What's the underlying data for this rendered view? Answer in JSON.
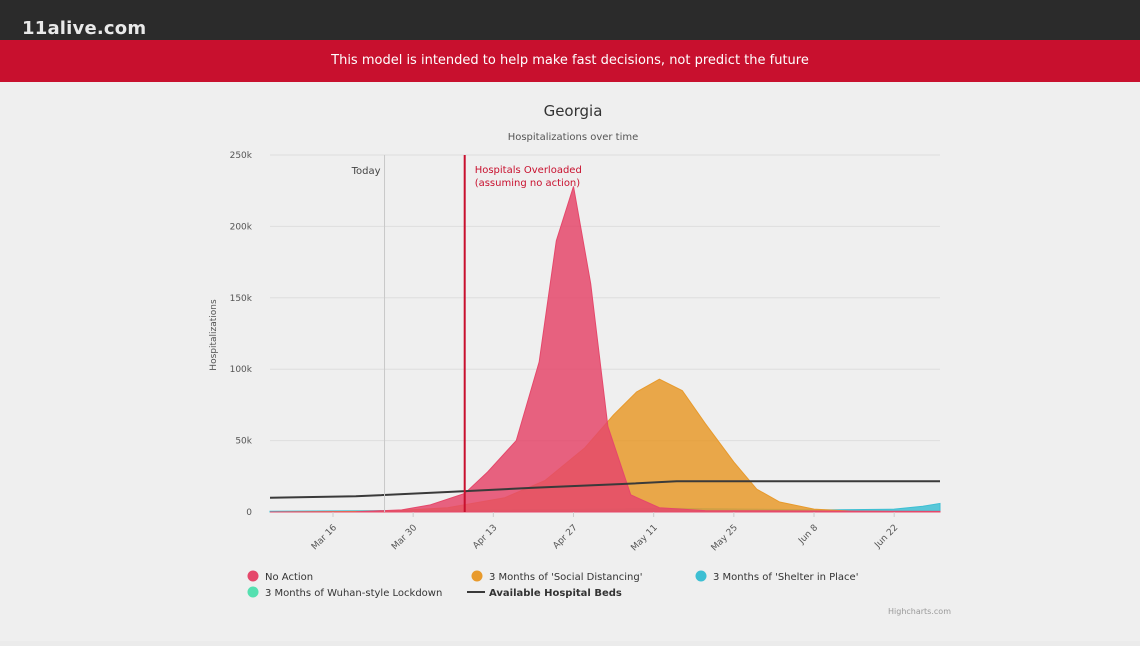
{
  "header": {
    "site_name": "11alive.com"
  },
  "banner": {
    "text": "This model is intended to help make fast decisions, not predict the future"
  },
  "colors": {
    "no_action": "#e5486b",
    "social_distancing": "#e89a2c",
    "shelter": "#3dbfd3",
    "wuhan": "#55e0b0",
    "beds": "#3a3a3a",
    "banner": "#c8102e"
  },
  "credit": "Highcharts.com",
  "chart_data": {
    "type": "area",
    "title": "Georgia",
    "subtitle": "Hospitalizations over time",
    "ylabel": "Hospitalizations",
    "ylim": [
      0,
      250000
    ],
    "y_ticks": [
      {
        "value": 0,
        "label": "0"
      },
      {
        "value": 50000,
        "label": "50k"
      },
      {
        "value": 100000,
        "label": "100k"
      },
      {
        "value": 150000,
        "label": "150k"
      },
      {
        "value": 200000,
        "label": "200k"
      },
      {
        "value": 250000,
        "label": "250k"
      }
    ],
    "xlim": [
      "Mar 5",
      "Jun 30"
    ],
    "x_ticks": [
      "Mar 16",
      "Mar 30",
      "Apr 13",
      "Apr 27",
      "May 11",
      "May 25",
      "Jun 8",
      "Jun 22"
    ],
    "plot_lines": [
      {
        "date": "Mar 25",
        "label": "Today",
        "color": "#c8c8c8"
      },
      {
        "date": "Apr 8",
        "label": "Hospitals Overloaded",
        "label2": "(assuming no action)",
        "color": "#c8102e"
      }
    ],
    "series": [
      {
        "name": "No Action",
        "kind": "area",
        "color": "#e5486b",
        "points": [
          [
            "Mar 5",
            0
          ],
          [
            "Mar 20",
            200
          ],
          [
            "Mar 28",
            1500
          ],
          [
            "Apr 2",
            5000
          ],
          [
            "Apr 8",
            13000
          ],
          [
            "Apr 12",
            28000
          ],
          [
            "Apr 17",
            50000
          ],
          [
            "Apr 21",
            105000
          ],
          [
            "Apr 24",
            190000
          ],
          [
            "Apr 27",
            228000
          ],
          [
            "Apr 30",
            160000
          ],
          [
            "May 3",
            60000
          ],
          [
            "May 7",
            12000
          ],
          [
            "May 12",
            3000
          ],
          [
            "May 20",
            1000
          ],
          [
            "Jun 30",
            400
          ]
        ]
      },
      {
        "name": "3 Months of 'Social Distancing'",
        "kind": "area",
        "color": "#e89a2c",
        "points": [
          [
            "Mar 5",
            0
          ],
          [
            "Mar 25",
            500
          ],
          [
            "Apr 5",
            3000
          ],
          [
            "Apr 15",
            10000
          ],
          [
            "Apr 22",
            22000
          ],
          [
            "Apr 29",
            45000
          ],
          [
            "May 4",
            68000
          ],
          [
            "May 8",
            84000
          ],
          [
            "May 12",
            93000
          ],
          [
            "May 16",
            85000
          ],
          [
            "May 20",
            62000
          ],
          [
            "May 25",
            35000
          ],
          [
            "May 29",
            16000
          ],
          [
            "Jun 2",
            7000
          ],
          [
            "Jun 8",
            2000
          ],
          [
            "Jun 15",
            500
          ],
          [
            "Jun 30",
            200
          ]
        ]
      },
      {
        "name": "3 Months of 'Shelter in Place'",
        "kind": "area",
        "color": "#3dbfd3",
        "points": [
          [
            "Mar 5",
            500
          ],
          [
            "Apr 15",
            1500
          ],
          [
            "May 15",
            2500
          ],
          [
            "Jun 10",
            1500
          ],
          [
            "Jun 22",
            2000
          ],
          [
            "Jun 27",
            4000
          ],
          [
            "Jun 30",
            6000
          ]
        ]
      },
      {
        "name": "3 Months of Wuhan-style Lockdown",
        "kind": "area",
        "color": "#55e0b0",
        "points": [
          [
            "Mar 5",
            300
          ],
          [
            "Apr 15",
            800
          ],
          [
            "May 15",
            1200
          ],
          [
            "Jun 30",
            600
          ]
        ]
      },
      {
        "name": "Available Hospital Beds",
        "kind": "line",
        "color": "#3a3a3a",
        "points": [
          [
            "Mar 5",
            10000
          ],
          [
            "Mar 20",
            11000
          ],
          [
            "Apr 5",
            14000
          ],
          [
            "Apr 20",
            17000
          ],
          [
            "May 5",
            19500
          ],
          [
            "May 15",
            21500
          ],
          [
            "Jun 1",
            21500
          ],
          [
            "Jun 30",
            21500
          ]
        ]
      }
    ]
  }
}
